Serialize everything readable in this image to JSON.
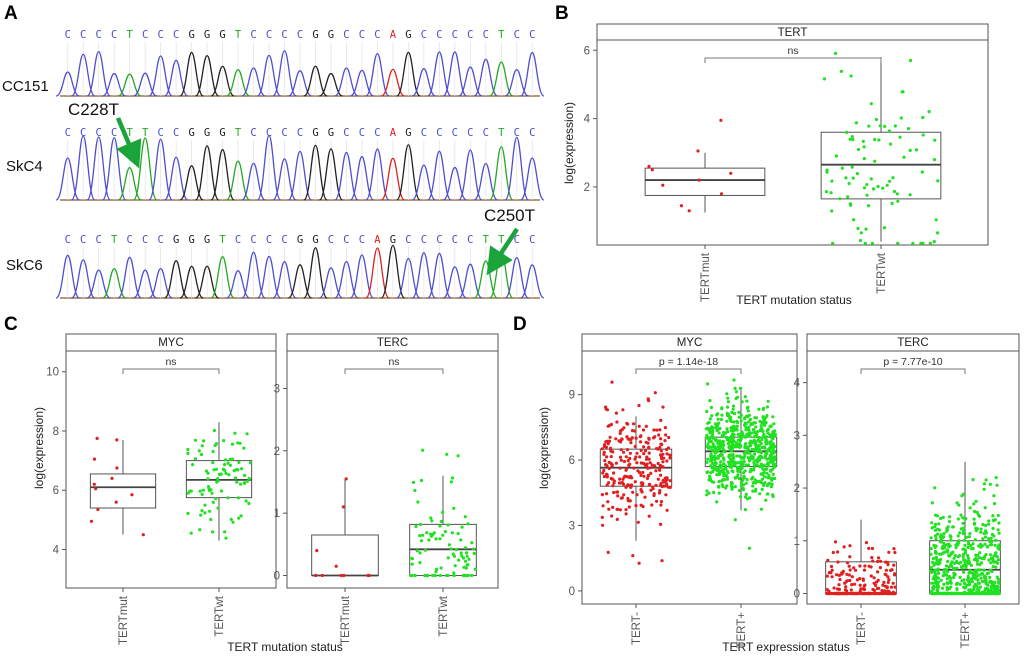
{
  "figure": {
    "panel_labels": {
      "a": "A",
      "b": "B",
      "c": "C",
      "d": "D"
    },
    "arrow_color": "#1aa43a"
  },
  "chromatograms": {
    "samples": [
      {
        "name": "CC151",
        "bases": "CCCCTCCCGGGTCCCCGGCCCAGCCCCCTCC"
      },
      {
        "name": "SkC4",
        "bases": "CCCCTTCCGGGTCCCCGGCCCAGCCCCCTCC"
      },
      {
        "name": "SkC6",
        "bases": "CCCTCCCGGGTCCCCGGCCCAGCCCCCTTCC"
      }
    ],
    "mutations": [
      {
        "label": "C228T",
        "sample": "SkC4"
      },
      {
        "label": "C250T",
        "sample": "SkC6"
      }
    ],
    "base_colors": {
      "C": "#4f4fd0",
      "T": "#22aa22",
      "G": "#222222",
      "A": "#dd2222"
    }
  },
  "chart_data": [
    {
      "panel": "B",
      "type": "box",
      "facets": [
        {
          "title": "TERT",
          "ylim": [
            0.3,
            6.3
          ],
          "yticks": [
            2,
            4,
            6
          ],
          "groups": [
            {
              "name": "TERTmut",
              "color": "#e02020",
              "q1": 1.75,
              "median": 2.2,
              "q3": 2.55,
              "lower": 1.25,
              "upper": 3.0,
              "n": 10,
              "points": [
                1.3,
                1.45,
                1.8,
                2.05,
                2.2,
                2.4,
                2.5,
                2.6,
                3.05,
                3.95
              ]
            },
            {
              "name": "TERTwt",
              "color": "#22e022",
              "q1": 1.65,
              "median": 2.65,
              "q3": 3.6,
              "lower": 0.4,
              "upper": 5.8,
              "n": 90,
              "points": []
            }
          ],
          "comparison": "ns"
        }
      ],
      "ylabel": "log(expression)",
      "xlabel": "TERT mutation status"
    },
    {
      "panel": "C",
      "type": "box",
      "facets": [
        {
          "title": "MYC",
          "ylim": [
            2.7,
            10.7
          ],
          "yticks": [
            4,
            6,
            8,
            10
          ],
          "groups": [
            {
              "name": "TERTmut",
              "color": "#e02020",
              "q1": 5.4,
              "median": 6.1,
              "q3": 6.55,
              "lower": 4.5,
              "upper": 7.7,
              "n": 12,
              "points": [
                4.5,
                4.95,
                5.35,
                5.6,
                5.85,
                6.05,
                6.2,
                6.4,
                6.75,
                7.05,
                7.7,
                7.75
              ]
            },
            {
              "name": "TERTwt",
              "color": "#22e022",
              "q1": 5.75,
              "median": 6.35,
              "q3": 7.0,
              "lower": 4.3,
              "upper": 8.3,
              "n": 90,
              "points": []
            }
          ],
          "comparison": "ns"
        },
        {
          "title": "TERC",
          "ylim": [
            -0.2,
            3.6
          ],
          "yticks": [
            0,
            1,
            2,
            3
          ],
          "groups": [
            {
              "name": "TERTmut",
              "color": "#e02020",
              "q1": 0.0,
              "median": 0.0,
              "q3": 0.65,
              "lower": 0.0,
              "upper": 1.55,
              "n": 10,
              "points": [
                0,
                0,
                0,
                0,
                0,
                0,
                0.15,
                0.4,
                1.1,
                1.55
              ]
            },
            {
              "name": "TERTwt",
              "color": "#22e022",
              "q1": 0.0,
              "median": 0.42,
              "q3": 0.82,
              "lower": 0.0,
              "upper": 1.6,
              "n": 90,
              "points": []
            }
          ],
          "comparison": "ns"
        }
      ],
      "ylabel": "log(expression)",
      "xlabel": "TERT mutation status"
    },
    {
      "panel": "D",
      "type": "box",
      "facets": [
        {
          "title": "MYC",
          "ylim": [
            -0.6,
            11.0
          ],
          "yticks": [
            0,
            3,
            6,
            9
          ],
          "groups": [
            {
              "name": "TERT-",
              "color": "#e02020",
              "q1": 4.8,
              "median": 5.65,
              "q3": 6.5,
              "lower": 2.3,
              "upper": 8.0,
              "n": 280,
              "points": []
            },
            {
              "name": "TERT+",
              "color": "#22e022",
              "q1": 5.7,
              "median": 6.4,
              "q3": 7.05,
              "lower": 3.7,
              "upper": 9.2,
              "n": 650,
              "points": []
            }
          ],
          "comparison": "p = 1.14e-18"
        },
        {
          "title": "TERC",
          "ylim": [
            -0.2,
            4.6
          ],
          "yticks": [
            0,
            1,
            2,
            3,
            4
          ],
          "groups": [
            {
              "name": "TERT-",
              "color": "#e02020",
              "q1": 0.0,
              "median": 0.0,
              "q3": 0.6,
              "lower": 0.0,
              "upper": 1.4,
              "n": 280,
              "points": []
            },
            {
              "name": "TERT+",
              "color": "#22e022",
              "q1": 0.0,
              "median": 0.45,
              "q3": 1.0,
              "lower": 0.0,
              "upper": 2.5,
              "n": 650,
              "points": []
            }
          ],
          "comparison": "p = 7.77e-10"
        }
      ],
      "ylabel": "log(expression)",
      "xlabel": "TERT expression status"
    }
  ]
}
